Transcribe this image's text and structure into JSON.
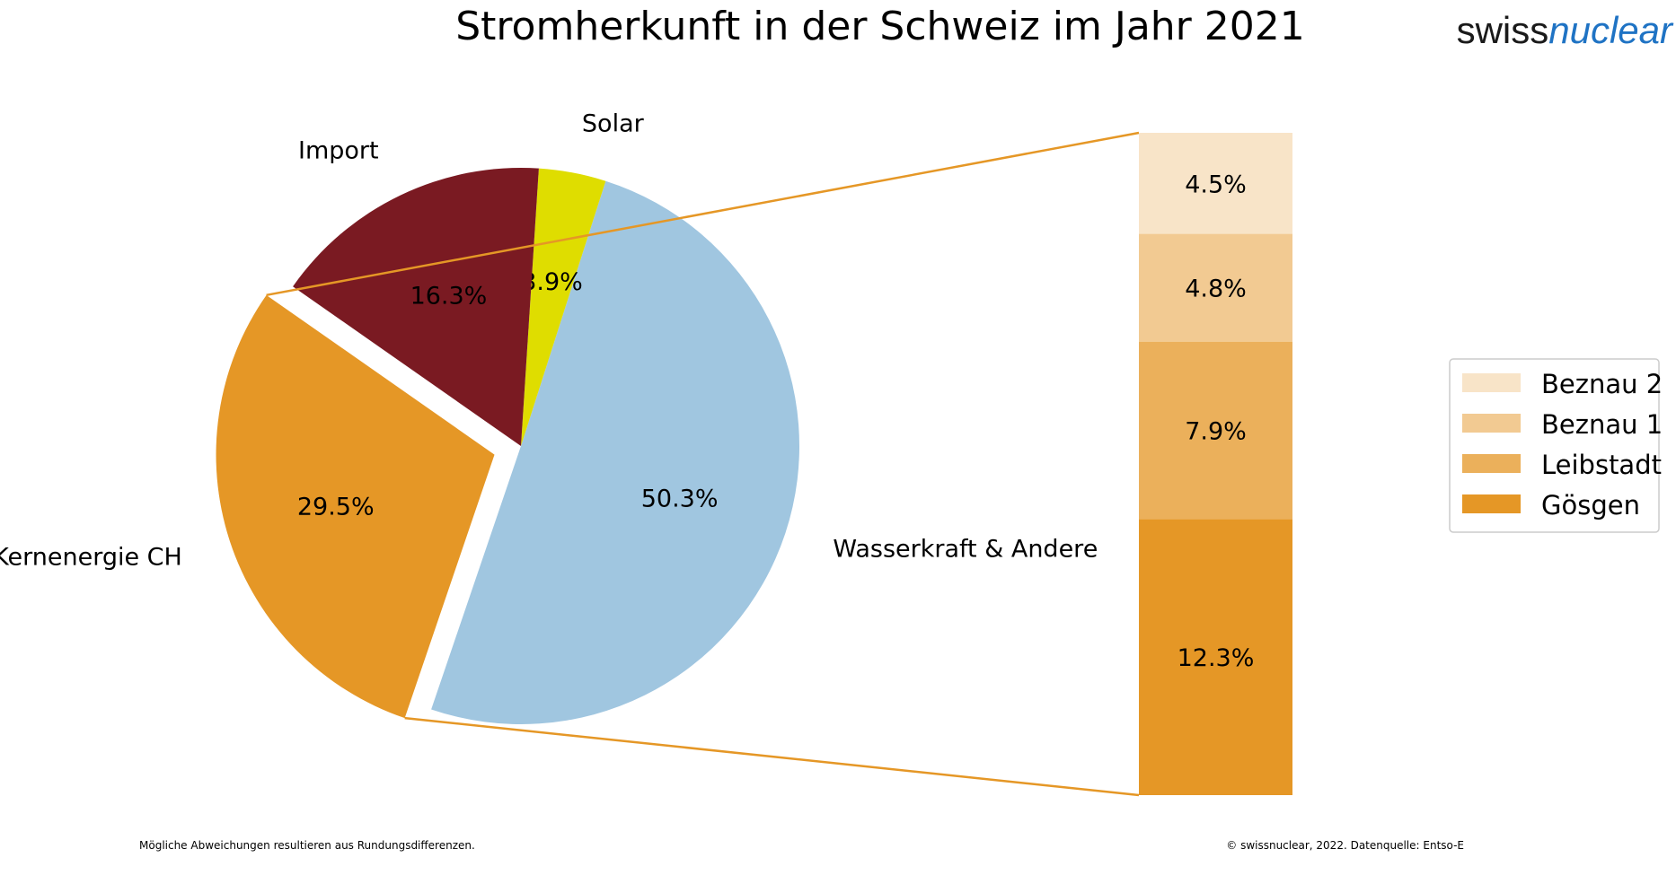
{
  "logo": {
    "part1": "swiss",
    "part2": "nuclear"
  },
  "footer": {
    "left": "Mögliche Abweichungen resultieren aus Rundungsdifferenzen.",
    "right": "© swissnuclear, 2022. Datenquelle: Entso-E"
  },
  "chart_data": [
    {
      "type": "pie",
      "title": "Stromherkunft in der Schweiz im Jahr 2021",
      "start_angle_deg": 145,
      "direction": "counterclockwise",
      "slices": [
        {
          "label": "Kernenergie CH",
          "value": 29.5,
          "value_label": "29.5%",
          "color": "#e59726",
          "exploded": true
        },
        {
          "label": "Wasserkraft & Andere",
          "value": 50.3,
          "value_label": "50.3%",
          "color": "#a0c6e0"
        },
        {
          "label": "Solar",
          "value": 3.9,
          "value_label": "3.9%",
          "color": "#dfdd00"
        },
        {
          "label": "Import",
          "value": 16.3,
          "value_label": "16.3%",
          "color": "#7a1a22"
        }
      ]
    },
    {
      "type": "bar",
      "stacked": true,
      "breakdown_of": "Kernenergie CH",
      "connector_color": "#e59726",
      "series": [
        {
          "name": "Gösgen",
          "value": 12.3,
          "value_label": "12.3%",
          "color": "#e59726"
        },
        {
          "name": "Leibstadt",
          "value": 7.9,
          "value_label": "7.9%",
          "color": "#ebb05b"
        },
        {
          "name": "Beznau 1",
          "value": 4.8,
          "value_label": "4.8%",
          "color": "#f2ca92"
        },
        {
          "name": "Beznau 2",
          "value": 4.5,
          "value_label": "4.5%",
          "color": "#f8e4c8"
        }
      ],
      "legend": {
        "position": "right",
        "entries": [
          "Beznau 2",
          "Beznau 1",
          "Leibstadt",
          "Gösgen"
        ]
      }
    }
  ]
}
